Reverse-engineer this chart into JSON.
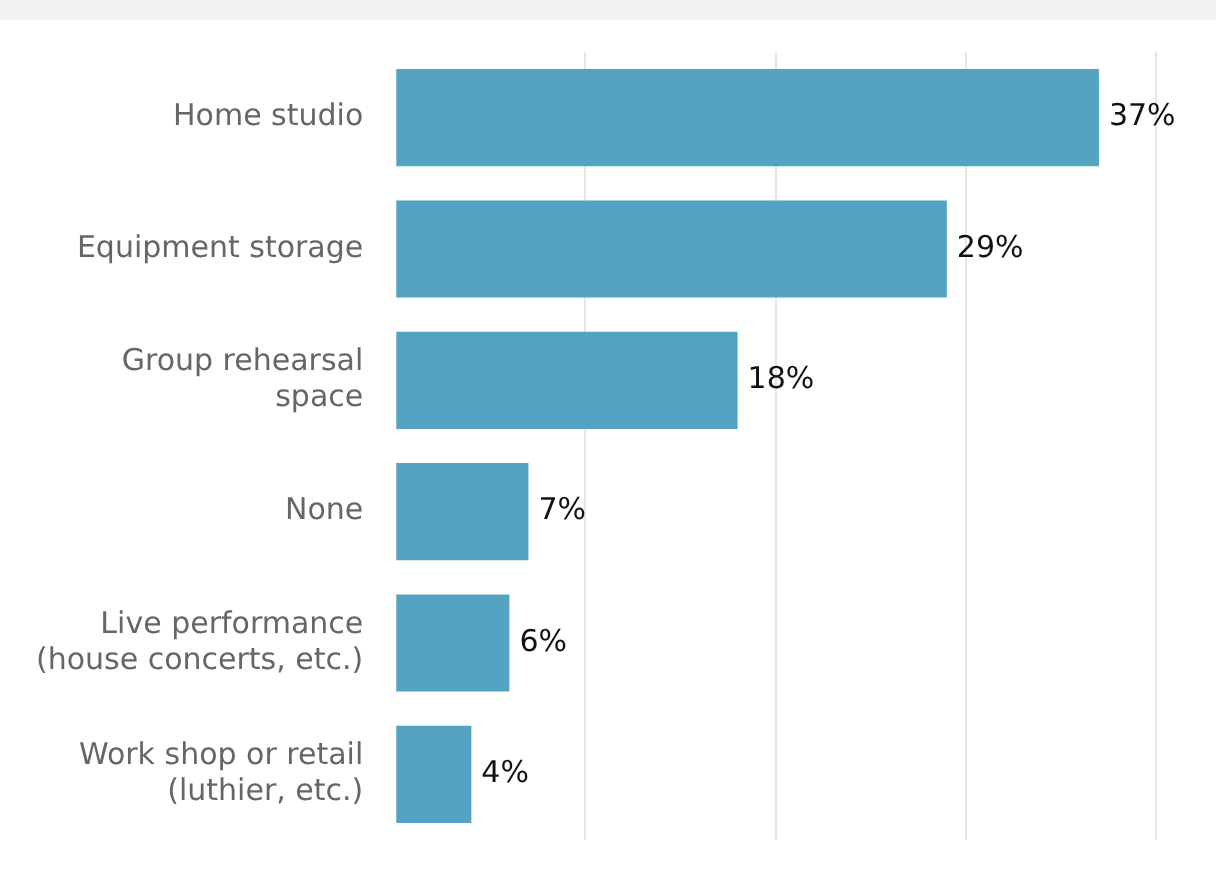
{
  "chart_data": {
    "type": "bar",
    "orientation": "horizontal",
    "categories": [
      "Home studio",
      "Equipment storage",
      "Group rehearsal\nspace",
      "None",
      "Live performance\n(house concerts, etc.)",
      "Work shop or retail\n(luthier, etc.)"
    ],
    "values": [
      37,
      29,
      18,
      7,
      6,
      4
    ],
    "value_labels": [
      "37%",
      "29%",
      "18%",
      "7%",
      "6%",
      "4%"
    ],
    "color": "#55a3c2",
    "xlim": [
      0,
      40
    ],
    "xticks": [
      {
        "value": 0,
        "label": null
      },
      {
        "value": 10,
        "label": null
      },
      {
        "value": 20,
        "label": null
      },
      {
        "value": 30,
        "label": null
      },
      {
        "value": 40,
        "label": null
      }
    ],
    "tick_labels": "y",
    "grid": "x",
    "legend": false
  }
}
